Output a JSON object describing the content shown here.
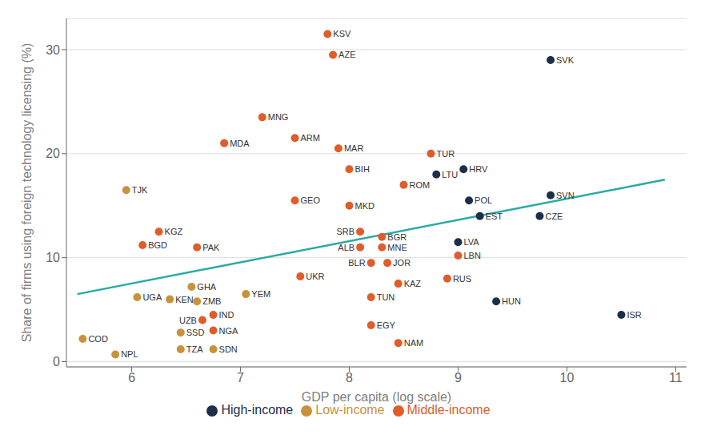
{
  "chart_data": {
    "type": "scatter",
    "xlabel": "GDP per capita (log scale)",
    "ylabel": "Share of firms using foreign technology licensing (%)",
    "xlim": [
      5.4,
      11.1
    ],
    "ylim": [
      -0.5,
      33
    ],
    "xticks": [
      6,
      7,
      8,
      9,
      10,
      11
    ],
    "yticks": [
      0,
      10,
      20,
      30
    ],
    "grid": "y",
    "legend": "bottom",
    "series": [
      {
        "name": "Low-income",
        "color": "#C8923A",
        "x": [
          5.55,
          5.85,
          5.95,
          6.05,
          6.35,
          6.45,
          6.45,
          6.55,
          6.6,
          6.75,
          7.05
        ],
        "y": [
          2.2,
          0.7,
          16.5,
          6.2,
          6.0,
          2.8,
          1.2,
          7.2,
          5.8,
          1.2,
          6.5
        ],
        "labels": [
          "COD",
          "NPL",
          "TJK",
          "UGA",
          "KEN",
          "SSD",
          "TZA",
          "GHA",
          "ZMB",
          "SDN",
          "YEM"
        ]
      },
      {
        "name": "Middle-income",
        "color": "#E05C2A",
        "x": [
          6.1,
          6.25,
          6.6,
          6.65,
          6.75,
          6.75,
          6.85,
          7.2,
          7.5,
          7.5,
          7.55,
          7.8,
          7.85,
          7.9,
          8.0,
          8.0,
          8.1,
          8.1,
          8.2,
          8.2,
          8.2,
          8.3,
          8.3,
          8.35,
          8.45,
          8.45,
          8.5,
          8.75,
          8.9,
          9.0
        ],
        "y": [
          11.2,
          12.5,
          11.0,
          4.0,
          4.5,
          3.0,
          21.0,
          23.5,
          21.5,
          15.5,
          8.2,
          31.5,
          29.5,
          20.5,
          18.5,
          15.0,
          12.5,
          11.0,
          9.5,
          6.2,
          3.5,
          12.0,
          11.0,
          9.5,
          7.5,
          1.8,
          17.0,
          20.0,
          8.0,
          10.2
        ],
        "labels": [
          "BGD",
          "KGZ",
          "PAK",
          "UZB",
          "IND",
          "NGA",
          "MDA",
          "MNG",
          "ARM",
          "GEO",
          "UKR",
          "KSV",
          "AZE",
          "MAR",
          "BIH",
          "MKD",
          "SRB",
          "ALB",
          "BLR",
          "TUN",
          "EGY",
          "BGR",
          "MNE",
          "JOR",
          "KAZ",
          "NAM",
          "ROM",
          "TUR",
          "RUS",
          "LBN"
        ]
      },
      {
        "name": "High-income",
        "color": "#1C2F4A",
        "x": [
          8.8,
          9.0,
          9.05,
          9.1,
          9.2,
          9.35,
          9.75,
          9.85,
          9.85,
          10.5
        ],
        "y": [
          18.0,
          11.5,
          18.5,
          15.5,
          14.0,
          5.8,
          14.0,
          16.0,
          29.0,
          4.5
        ],
        "labels": [
          "LTU",
          "LVA",
          "HRV",
          "POL",
          "EST",
          "HUN",
          "CZE",
          "SVN",
          "SVK",
          "ISR"
        ]
      }
    ],
    "trend_line": {
      "x": [
        5.5,
        10.9
      ],
      "y": [
        6.5,
        17.5
      ],
      "color": "#29AAA5"
    }
  }
}
